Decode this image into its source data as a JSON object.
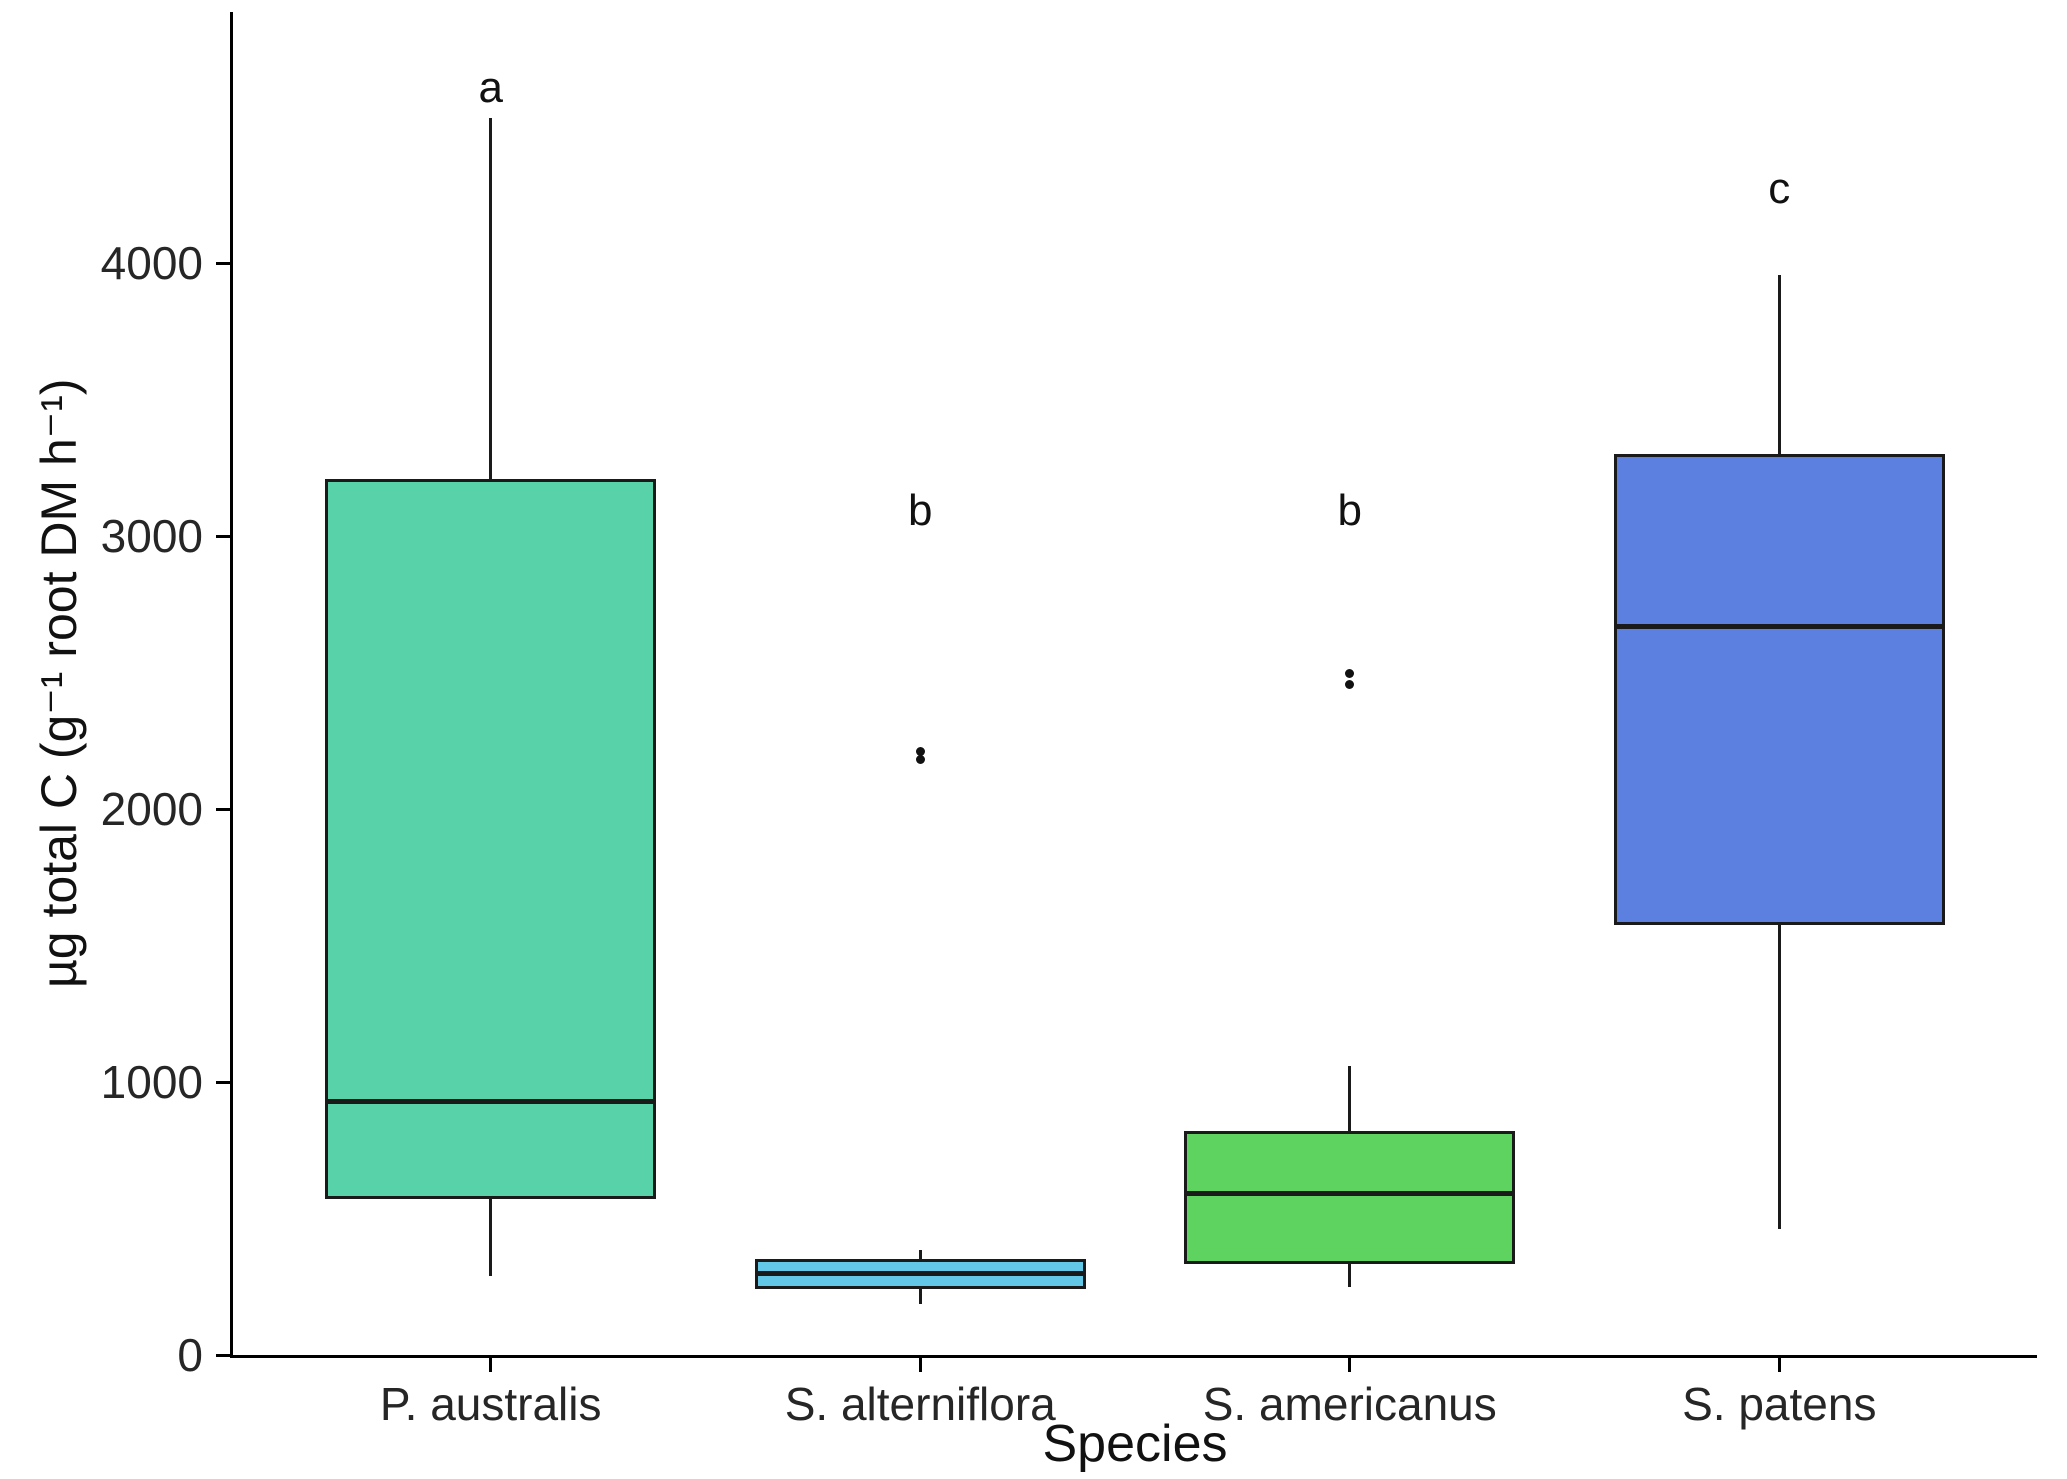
{
  "chart_data": {
    "type": "boxplot",
    "title": "",
    "xlabel": "Species",
    "ylabel": "µg total C (g⁻¹ root DM h⁻¹)",
    "ylim": [
      0,
      4910
    ],
    "yticks": [
      0,
      1000,
      2000,
      3000,
      4000
    ],
    "grid": "off",
    "legend": "none",
    "axis_color": "#000000",
    "categories": [
      "P. australis",
      "S. alterniflora",
      "S. americanus",
      "S. patens"
    ],
    "series": [
      {
        "name": "P. australis",
        "color": "#57D2A9",
        "whisker_low": 290,
        "q1": 570,
        "median": 930,
        "q3": 3210,
        "whisker_high": 4530,
        "outliers": [],
        "sig_letter": "a",
        "letter_y": 4640
      },
      {
        "name": "S. alterniflora",
        "color": "#63C7E8",
        "whisker_low": 185,
        "q1": 240,
        "median": 300,
        "q3": 350,
        "whisker_high": 385,
        "outliers": [
          2180,
          2212
        ],
        "sig_letter": "b",
        "letter_y": 3090
      },
      {
        "name": "S. americanus",
        "color": "#5FD35F",
        "whisker_low": 250,
        "q1": 335,
        "median": 590,
        "q3": 820,
        "whisker_high": 1060,
        "outliers": [
          2455,
          2495
        ],
        "sig_letter": "b",
        "letter_y": 3090
      },
      {
        "name": "S. patens",
        "color": "#5C80DF",
        "whisker_low": 460,
        "q1": 1575,
        "median": 2670,
        "q3": 3300,
        "whisker_high": 3955,
        "outliers": [],
        "sig_letter": "c",
        "letter_y": 4270
      }
    ]
  }
}
